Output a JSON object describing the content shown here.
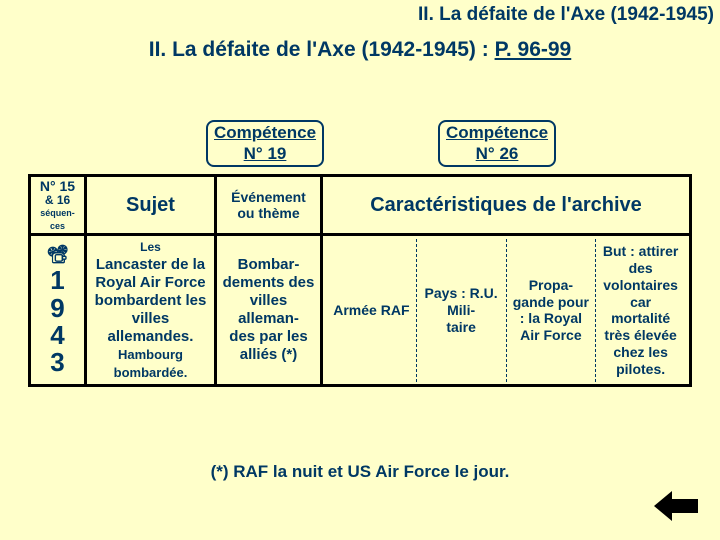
{
  "colors": {
    "background": "#ffffca",
    "text": "#003864",
    "table_border": "#000000",
    "dashed_divider": "#003864",
    "arrow_fill": "#000000"
  },
  "header": {
    "top": "II. La défaite de l'Axe (1942-1945)",
    "main_prefix": "II. La défaite de l'Axe (1942-1945) : ",
    "main_pageref": "P. 96-99"
  },
  "competences": {
    "left_line1": "Compétence",
    "left_line2": "N° 19",
    "right_line1": "Compétence",
    "right_line2": "N° 26"
  },
  "table": {
    "headers": {
      "col_n_line1": "N°",
      "col_n_line1_suffix": " 15",
      "col_n_line2": "& 16",
      "col_n_line3": "séquen-",
      "col_n_line4": "ces",
      "sujet": "Sujet",
      "evenement_line1": "Événement",
      "evenement_line2": "ou ",
      "evenement_line2_bold": "thème",
      "carac": "Caractéristiques de l'archive"
    },
    "row": {
      "year_icon": "📽",
      "year_digits": [
        "1",
        "9",
        "4",
        "3"
      ],
      "sujet_les": "Les",
      "sujet_main": "Lancaster de la Royal Air Force bombardent les villes allemandes.",
      "sujet_ham": "Hambourg bombardée.",
      "evt": "Bombar-\ndements des villes alleman-\ndes par les alliés (*)",
      "carac": [
        "Armée RAF",
        "Pays : R.U. Mili-\ntaire",
        "Propa-\ngande pour : la Royal Air Force",
        "But : attirer des volontaires car mortalité très élevée chez les pilotes."
      ]
    }
  },
  "footnote": "(*) RAF la nuit et US Air Force le jour."
}
